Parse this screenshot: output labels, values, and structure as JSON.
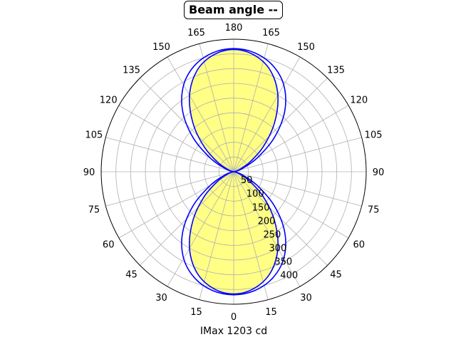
{
  "chart_data": {
    "type": "polar",
    "title": "Beam angle --",
    "xlabel": "IMax 1203 cd",
    "angle_tick_labels": [
      "0",
      "15",
      "30",
      "45",
      "60",
      "75",
      "90",
      "105",
      "120",
      "135",
      "150",
      "165",
      "180",
      "165",
      "150",
      "135",
      "120",
      "105",
      "90",
      "75",
      "60",
      "45",
      "30",
      "15"
    ],
    "radial_ticks": [
      50,
      100,
      150,
      200,
      250,
      300,
      350,
      400
    ],
    "rlim": [
      0,
      450
    ],
    "grid": true,
    "series": [
      {
        "color": "#0000ff",
        "fill": "#ffff80",
        "filled": true,
        "angles": [
          0,
          10,
          20,
          30,
          40,
          50,
          60,
          70,
          80,
          90
        ],
        "values": [
          415,
          402,
          365,
          300,
          215,
          130,
          60,
          20,
          5,
          0
        ]
      },
      {
        "color": "#0000ff",
        "filled": false,
        "angles": [
          0,
          10,
          20,
          30,
          40,
          50,
          60,
          70,
          80,
          90
        ],
        "values": [
          418,
          410,
          385,
          340,
          270,
          180,
          90,
          30,
          6,
          0
        ]
      }
    ]
  }
}
